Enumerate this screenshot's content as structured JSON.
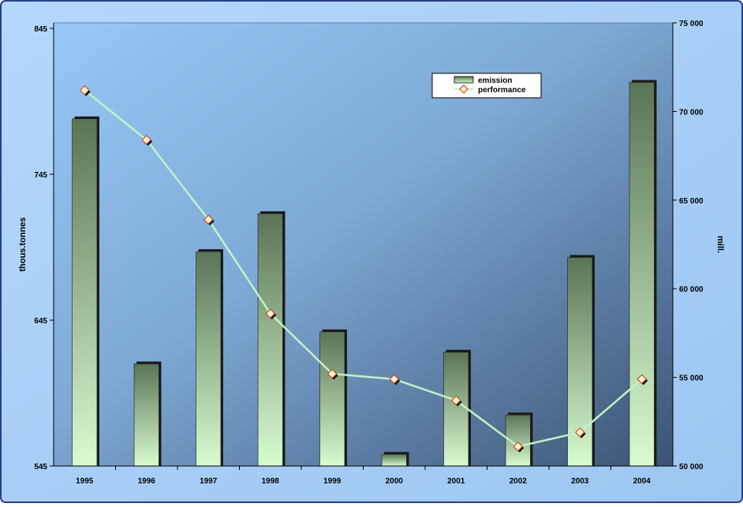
{
  "chart_data": {
    "type": "bar",
    "title": "",
    "categories": [
      "1995",
      "1996",
      "1997",
      "1998",
      "1999",
      "2000",
      "2001",
      "2002",
      "2003",
      "2004"
    ],
    "series": [
      {
        "name": "emission",
        "type": "bar",
        "axis": "left",
        "values": [
          783,
          615,
          692,
          718,
          637,
          553,
          623,
          580,
          688,
          808
        ]
      },
      {
        "name": "performance",
        "type": "line",
        "axis": "right",
        "values": [
          71200,
          68400,
          63900,
          58600,
          55200,
          54900,
          53700,
          51100,
          51900,
          54900
        ]
      }
    ],
    "ylabel": "thous.tonnes",
    "y2label": "mill.",
    "ylim": [
      545,
      845
    ],
    "y2lim": [
      50000,
      75000
    ],
    "yticks": [
      "545",
      "645",
      "745",
      "845"
    ],
    "y2ticks": [
      "50 000",
      "55 000",
      "60 000",
      "65 000",
      "70 000",
      "75 000"
    ],
    "legend_position": "top-right",
    "grid": false,
    "colors": {
      "frame_background": "#a6cdf5",
      "plot_gradient_light": "#98c8f6",
      "plot_gradient_dark": "#3c5474",
      "bar_top": "#5a7456",
      "bar_bottom": "#d8fcd0",
      "line": "#c2f0c8",
      "marker_fill": "#fff6cc",
      "marker_stroke": "#d4301f"
    }
  }
}
